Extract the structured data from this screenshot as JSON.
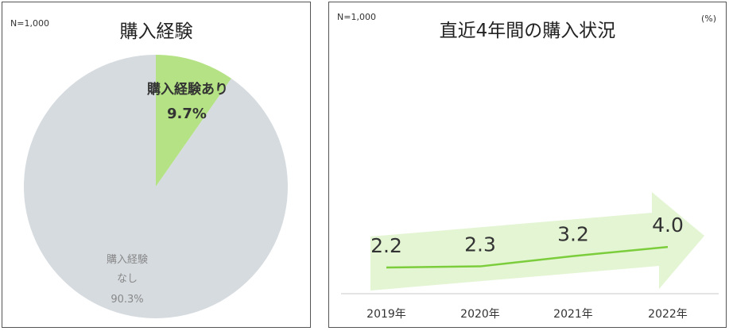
{
  "left_panel": {
    "n_label": "N=1,000",
    "title": "購入経験"
  },
  "right_panel": {
    "n_label": "N=1,000",
    "title": "直近4年間の購入状況",
    "unit": "(%)"
  },
  "colors": {
    "pie_yes": "#b4e285",
    "pie_no": "#d6dbe0",
    "line": "#7ccd3c",
    "arrow": "#e3f5d3",
    "axis": "#c8c8c8"
  },
  "chart_data": [
    {
      "type": "pie",
      "title": "購入経験",
      "slices": [
        {
          "label": "購入経験あり",
          "value": 9.7,
          "value_label": "9.7%"
        },
        {
          "label_lines": [
            "購入経験",
            "なし"
          ],
          "value": 90.3,
          "value_label": "90.3%"
        }
      ]
    },
    {
      "type": "line",
      "title": "直近4年間の購入状況",
      "categories": [
        "2019年",
        "2020年",
        "2021年",
        "2022年"
      ],
      "values": [
        2.2,
        2.3,
        3.2,
        4.0
      ],
      "value_labels": [
        "2.2",
        "2.3",
        "3.2",
        "4.0"
      ]
    }
  ]
}
